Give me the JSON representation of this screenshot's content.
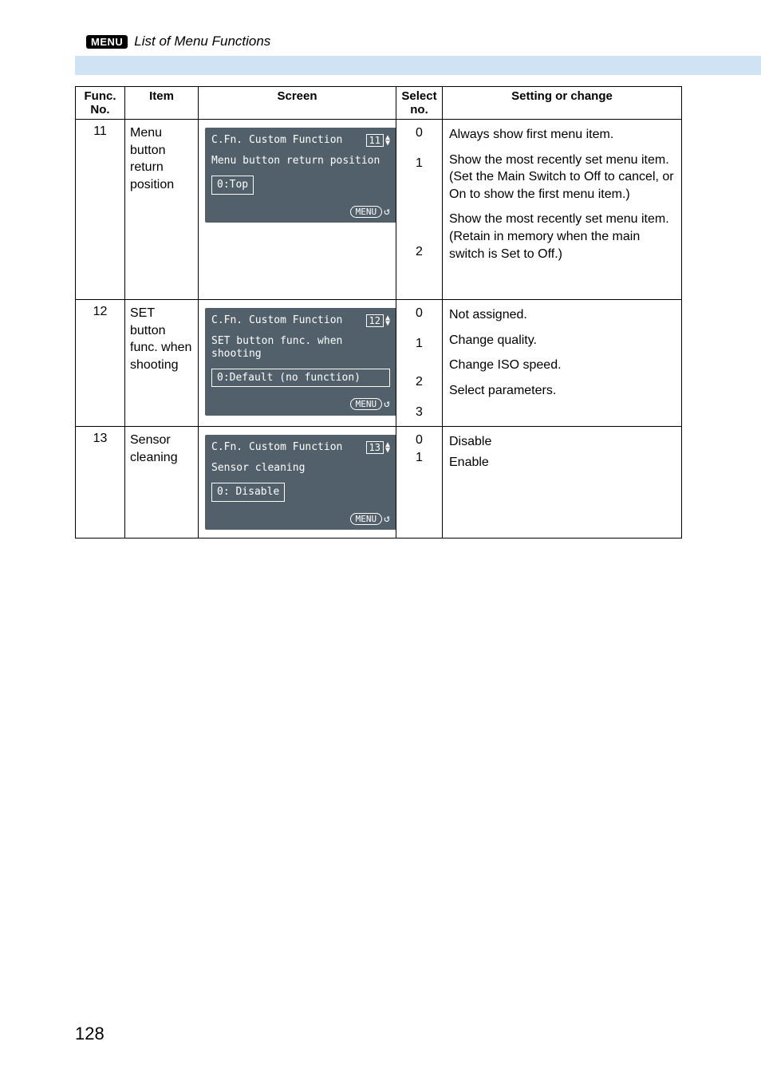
{
  "header": {
    "badge": "MENU",
    "title": "List of Menu Functions"
  },
  "columns": {
    "func": "Func. No.",
    "item": "Item",
    "screen": "Screen",
    "select": "Select no.",
    "setting": "Setting or change"
  },
  "rows": [
    {
      "func": "11",
      "item": "Menu button return position",
      "lcd": {
        "header": "C.Fn. Custom Function",
        "number": "11",
        "title": "Menu button return position",
        "value": "0:Top",
        "value_wide": false
      },
      "options": [
        {
          "no": "0",
          "text": "Always show first menu item.",
          "gap_after": "gap1"
        },
        {
          "no": "1",
          "text": "Show the most recently set menu item. (Set the Main Switch to Off to cancel, or On to show the first menu item.)",
          "gap_after": "gap2"
        },
        {
          "no": "2",
          "text": "Show the most recently set menu item. (Retain in memory when the main switch is Set to Off.)",
          "gap_after": "gap0"
        }
      ]
    },
    {
      "func": "12",
      "item": "SET button func. when shooting",
      "lcd": {
        "header": "C.Fn. Custom Function",
        "number": "12",
        "title": "SET button func. when shooting",
        "value": "0:Default (no function)",
        "value_wide": true
      },
      "options": [
        {
          "no": "0",
          "text": "Not assigned.",
          "gap_after": "gap1"
        },
        {
          "no": "1",
          "text": "Change quality.",
          "gap_after": "gap2"
        },
        {
          "no": "2",
          "text": "Change ISO speed.",
          "gap_after": "gap1"
        },
        {
          "no": "3",
          "text": "Select parameters.",
          "gap_after": "gap0"
        }
      ]
    },
    {
      "func": "13",
      "item": "Sensor cleaning",
      "lcd": {
        "header": "C.Fn. Custom Function",
        "number": "13",
        "title": "Sensor cleaning",
        "value": "0: Disable",
        "value_wide": false
      },
      "options": [
        {
          "no": "0",
          "text": "Disable",
          "gap_after": "gap0"
        },
        {
          "no": "1",
          "text": "Enable",
          "gap_after": "gap0"
        }
      ]
    }
  ],
  "lcd_common": {
    "menu_label": "MENU",
    "return_glyph": "↺"
  },
  "page_number": "128",
  "styling": {
    "blue_bar_color": "#cfe3f4",
    "lcd_bg": "#51606a",
    "lcd_fg": "#ffffff",
    "page_bg": "#ffffff",
    "text_color": "#000000",
    "border_color": "#000000",
    "body_font": "Helvetica, Arial, sans-serif",
    "lcd_font": "Lucida Console, Monaco, monospace"
  }
}
